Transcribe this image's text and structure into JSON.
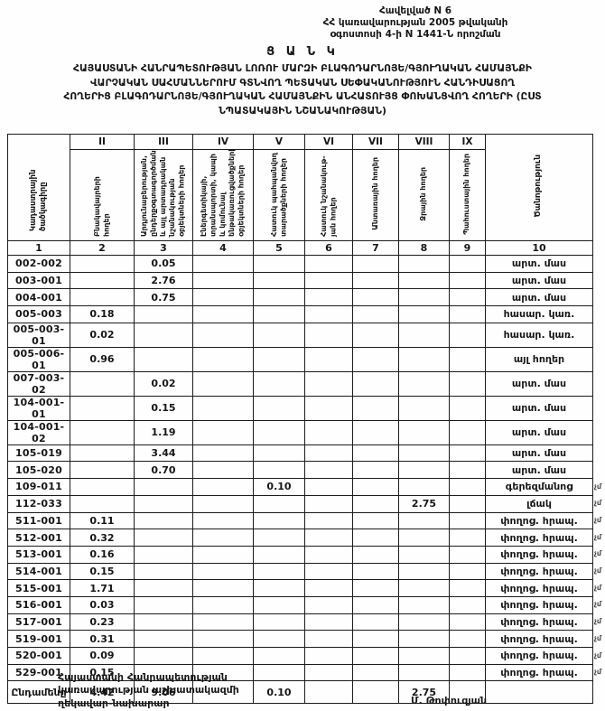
{
  "page": {
    "appendix_lines": [
      "Հավելված N 6",
      "ՀՀ կառավարության 2005 թվականի",
      "օգոստոսի 4-ի N 1441-Ն որոշման"
    ],
    "title": "Ց Ա Ն Կ",
    "subtitle_lines": [
      "ՀԱՅԱՍՏԱՆԻ ՀԱՆՐԱՊԵՏՈՒԹՅԱՆ ԼՈՌՈՒ ՄԱՐԶԻ ԲԼԱԳՈԴԱՐՆՈՅԵ/ԳՅՈՒՂԱԿԱՆ ՀԱՄԱՅՆՔԻ",
      "ՎԱՐՉԱԿԱՆ ՍԱՀՄԱՆՆԵՐՈՒՄ ԳՏՆՎՈՂ ՊԵՏԱԿԱՆ ՍԵՓԱԿԱՆՈՒԹՅՈՒՆ ՀԱՆԴԻՍԱՑՈՂ",
      "ՀՈՂԵՐԻՑ ԲԼԱԳՈԴԱՐՆՈՅԵ/ԳՅՈՒՂԱԿԱՆ ՀԱՄԱՅՆՔԻՆ ԱՆՀԱՏՈՒՅՑ ՓՈԽԱՆՑՎՈՂ ՀՈՂԵՐԻ (ԸՍՏ",
      "ՆՊԱՏԱԿԱՅԻՆ ՆՇԱՆԱԿՈՒԹՅԱՆ)"
    ]
  },
  "table": {
    "roman_headers": [
      "II",
      "III",
      "IV",
      "V",
      "VI",
      "VII",
      "VIII",
      "IX"
    ],
    "column_headers": [
      "Կադաստրային ծածկագիրը",
      "Բնակավայրերի հողեր",
      "Արդյունաբերության, ընդերքօգտագործման և այլ արտադրական նշանակության օբյեկտների հողեր",
      "Էներգետիկայի, տրանսպորտի, կապի և կոմունալ ենթակառուցվածքների օբյեկտների հողեր",
      "Հատուկ պահպանվող տարածքների հողեր",
      "Հատուկ նշանակութ-յան հողեր",
      "Անտառային հողեր",
      "Ջրային հողեր",
      "Պահուստային հողեր",
      "Ծանոթություն"
    ],
    "column_numbers": [
      "1",
      "2",
      "3",
      "4",
      "5",
      "6",
      "7",
      "8",
      "9",
      "10"
    ],
    "rows": [
      {
        "code": "002-002",
        "cells": [
          "",
          "0.05",
          "",
          "",
          "",
          "",
          "",
          ""
        ],
        "note": "արտ. մաս",
        "mark": ""
      },
      {
        "code": "003-001",
        "cells": [
          "",
          "2.76",
          "",
          "",
          "",
          "",
          "",
          ""
        ],
        "note": "արտ. մաս",
        "mark": ""
      },
      {
        "code": "004-001",
        "cells": [
          "",
          "0.75",
          "",
          "",
          "",
          "",
          "",
          ""
        ],
        "note": "արտ. մաս",
        "mark": ""
      },
      {
        "code": "005-003",
        "cells": [
          "0.18",
          "",
          "",
          "",
          "",
          "",
          "",
          ""
        ],
        "note": "հասար. կառ.",
        "mark": ""
      },
      {
        "code": "005-003-01",
        "cells": [
          "0.02",
          "",
          "",
          "",
          "",
          "",
          "",
          ""
        ],
        "note": "հասար. կառ.",
        "mark": ""
      },
      {
        "code": "005-006-01",
        "cells": [
          "0.96",
          "",
          "",
          "",
          "",
          "",
          "",
          ""
        ],
        "note": "այլ հողեր",
        "mark": ""
      },
      {
        "code": "007-003-02",
        "cells": [
          "",
          "0.02",
          "",
          "",
          "",
          "",
          "",
          ""
        ],
        "note": "արտ. մաս",
        "mark": ""
      },
      {
        "code": "104-001-01",
        "cells": [
          "",
          "0.15",
          "",
          "",
          "",
          "",
          "",
          ""
        ],
        "note": "արտ. մաս",
        "mark": ""
      },
      {
        "code": "104-001-02",
        "cells": [
          "",
          "1.19",
          "",
          "",
          "",
          "",
          "",
          ""
        ],
        "note": "արտ. մաս",
        "mark": ""
      },
      {
        "code": "105-019",
        "cells": [
          "",
          "3.44",
          "",
          "",
          "",
          "",
          "",
          ""
        ],
        "note": "արտ. մաս",
        "mark": ""
      },
      {
        "code": "105-020",
        "cells": [
          "",
          "0.70",
          "",
          "",
          "",
          "",
          "",
          ""
        ],
        "note": "արտ. մաս",
        "mark": ""
      },
      {
        "code": "109-011",
        "cells": [
          "",
          "",
          "",
          "0.10",
          "",
          "",
          "",
          ""
        ],
        "note": "գերեզմանոց",
        "mark": "չմ"
      },
      {
        "code": "112-033",
        "cells": [
          "",
          "",
          "",
          "",
          "",
          "",
          "2.75",
          ""
        ],
        "note": "լճակ",
        "mark": "չմ"
      },
      {
        "code": "511-001",
        "cells": [
          "0.11",
          "",
          "",
          "",
          "",
          "",
          "",
          ""
        ],
        "note": "փողոց. հրապ.",
        "mark": "չմ"
      },
      {
        "code": "512-001",
        "cells": [
          "0.32",
          "",
          "",
          "",
          "",
          "",
          "",
          ""
        ],
        "note": "փողոց. հրապ.",
        "mark": "չմ"
      },
      {
        "code": "513-001",
        "cells": [
          "0.16",
          "",
          "",
          "",
          "",
          "",
          "",
          ""
        ],
        "note": "փողոց. հրապ.",
        "mark": "չմ"
      },
      {
        "code": "514-001",
        "cells": [
          "0.15",
          "",
          "",
          "",
          "",
          "",
          "",
          ""
        ],
        "note": "փողոց. հրապ.",
        "mark": "չմ"
      },
      {
        "code": "515-001",
        "cells": [
          "1.71",
          "",
          "",
          "",
          "",
          "",
          "",
          ""
        ],
        "note": "փողոց. հրապ.",
        "mark": "չմ"
      },
      {
        "code": "516-001",
        "cells": [
          "0.03",
          "",
          "",
          "",
          "",
          "",
          "",
          ""
        ],
        "note": "փողոց. հրապ.",
        "mark": "չմ"
      },
      {
        "code": "517-001",
        "cells": [
          "0.23",
          "",
          "",
          "",
          "",
          "",
          "",
          ""
        ],
        "note": "փողոց. հրապ.",
        "mark": "չմ"
      },
      {
        "code": "519-001",
        "cells": [
          "0.31",
          "",
          "",
          "",
          "",
          "",
          "",
          ""
        ],
        "note": "փողոց. հրապ.",
        "mark": "չմ"
      },
      {
        "code": "520-001",
        "cells": [
          "0.09",
          "",
          "",
          "",
          "",
          "",
          "",
          ""
        ],
        "note": "փողոց. հրապ.",
        "mark": "չմ"
      },
      {
        "code": "529-001",
        "cells": [
          "0.15",
          "",
          "",
          "",
          "",
          "",
          "",
          ""
        ],
        "note": "փողոց. հրապ.",
        "mark": "չմ"
      }
    ],
    "total": {
      "label": "Ընդամենը",
      "cells": [
        "4.42",
        "9.06",
        "",
        "0.10",
        "",
        "",
        "2.75",
        ""
      ],
      "note": ""
    }
  },
  "footer": {
    "left_lines": [
      "Հայաստանի Հանրապետության",
      "կառավարության աշխատակազմի",
      "ղեկավար-նախարար"
    ],
    "signature": "Մ. Թոփուզյան"
  }
}
